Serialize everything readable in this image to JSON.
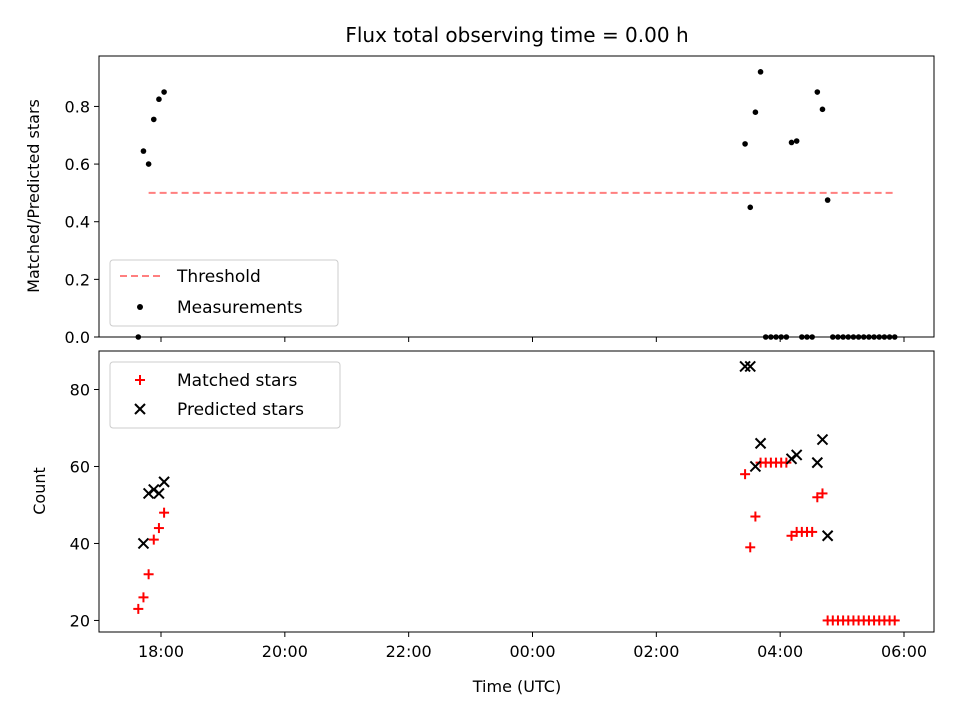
{
  "chart_data": [
    {
      "type": "scatter",
      "panel": "top",
      "title": "Flux total observing time = 0.00 h",
      "ylabel": "Matched/Predicted stars",
      "ylim": [
        0,
        0.975
      ],
      "yticks": [
        "0.0",
        "0.2",
        "0.4",
        "0.6",
        "0.8"
      ],
      "legend": {
        "placement": "lower-left",
        "entries": [
          "Threshold",
          "Measurements"
        ]
      },
      "threshold": {
        "name": "Threshold",
        "value": 0.5,
        "x_range": [
          "17:48",
          "05:50"
        ],
        "color": "#ff7f7f",
        "style": "dashed"
      },
      "series": [
        {
          "name": "Measurements",
          "color": "#000000",
          "marker": "dot",
          "x": [
            "17:38",
            "17:43",
            "17:48",
            "17:53",
            "17:58",
            "18:03",
            "03:26",
            "03:31",
            "03:36",
            "03:41",
            "03:46",
            "03:51",
            "03:56",
            "04:01",
            "04:06",
            "04:11",
            "04:16",
            "04:21",
            "04:26",
            "04:31",
            "04:36",
            "04:41",
            "04:46",
            "04:51",
            "04:56",
            "05:01",
            "05:06",
            "05:11",
            "05:16",
            "05:21",
            "05:26",
            "05:31",
            "05:36",
            "05:41",
            "05:46",
            "05:51"
          ],
          "y": [
            0.0,
            0.645,
            0.6,
            0.755,
            0.825,
            0.85,
            0.67,
            0.45,
            0.78,
            0.92,
            0.0,
            0.0,
            0.0,
            0.0,
            0.0,
            0.675,
            0.68,
            0.0,
            0.0,
            0.0,
            0.85,
            0.79,
            0.475,
            0.0,
            0.0,
            0.0,
            0.0,
            0.0,
            0.0,
            0.0,
            0.0,
            0.0,
            0.0,
            0.0,
            0.0,
            0.0
          ]
        }
      ]
    },
    {
      "type": "scatter",
      "panel": "bottom",
      "xlabel": "Time (UTC)",
      "ylabel": "Count",
      "ylim": [
        17,
        90
      ],
      "yticks": [
        "20",
        "40",
        "60",
        "80"
      ],
      "xticks": [
        "18:00",
        "20:00",
        "22:00",
        "00:00",
        "02:00",
        "04:00",
        "06:00"
      ],
      "legend": {
        "placement": "upper-left",
        "entries": [
          "Matched stars",
          "Predicted stars"
        ]
      },
      "series": [
        {
          "name": "Matched stars",
          "color": "#ff0000",
          "marker": "plus",
          "x": [
            "17:38",
            "17:43",
            "17:48",
            "17:53",
            "17:58",
            "18:03",
            "03:26",
            "03:31",
            "03:36",
            "03:41",
            "03:46",
            "03:51",
            "03:56",
            "04:01",
            "04:06",
            "04:11",
            "04:16",
            "04:21",
            "04:26",
            "04:31",
            "04:36",
            "04:41",
            "04:46",
            "04:51",
            "04:56",
            "05:01",
            "05:06",
            "05:11",
            "05:16",
            "05:21",
            "05:26",
            "05:31",
            "05:36",
            "05:41",
            "05:46",
            "05:51"
          ],
          "y": [
            23,
            26,
            32,
            41,
            44,
            48,
            58,
            39,
            47,
            61,
            61,
            61,
            61,
            61,
            61,
            42,
            43,
            43,
            43,
            43,
            52,
            53,
            20,
            20,
            20,
            20,
            20,
            20,
            20,
            20,
            20,
            20,
            20,
            20,
            20,
            20
          ]
        },
        {
          "name": "Predicted stars",
          "color": "#000000",
          "marker": "x",
          "x": [
            "17:43",
            "17:48",
            "17:53",
            "17:58",
            "18:03",
            "03:26",
            "03:31",
            "03:36",
            "03:41",
            "04:11",
            "04:16",
            "04:36",
            "04:41",
            "04:46"
          ],
          "y": [
            40,
            53,
            54,
            53,
            56,
            86,
            86,
            60,
            66,
            62,
            63,
            61,
            67,
            42
          ]
        }
      ]
    }
  ]
}
